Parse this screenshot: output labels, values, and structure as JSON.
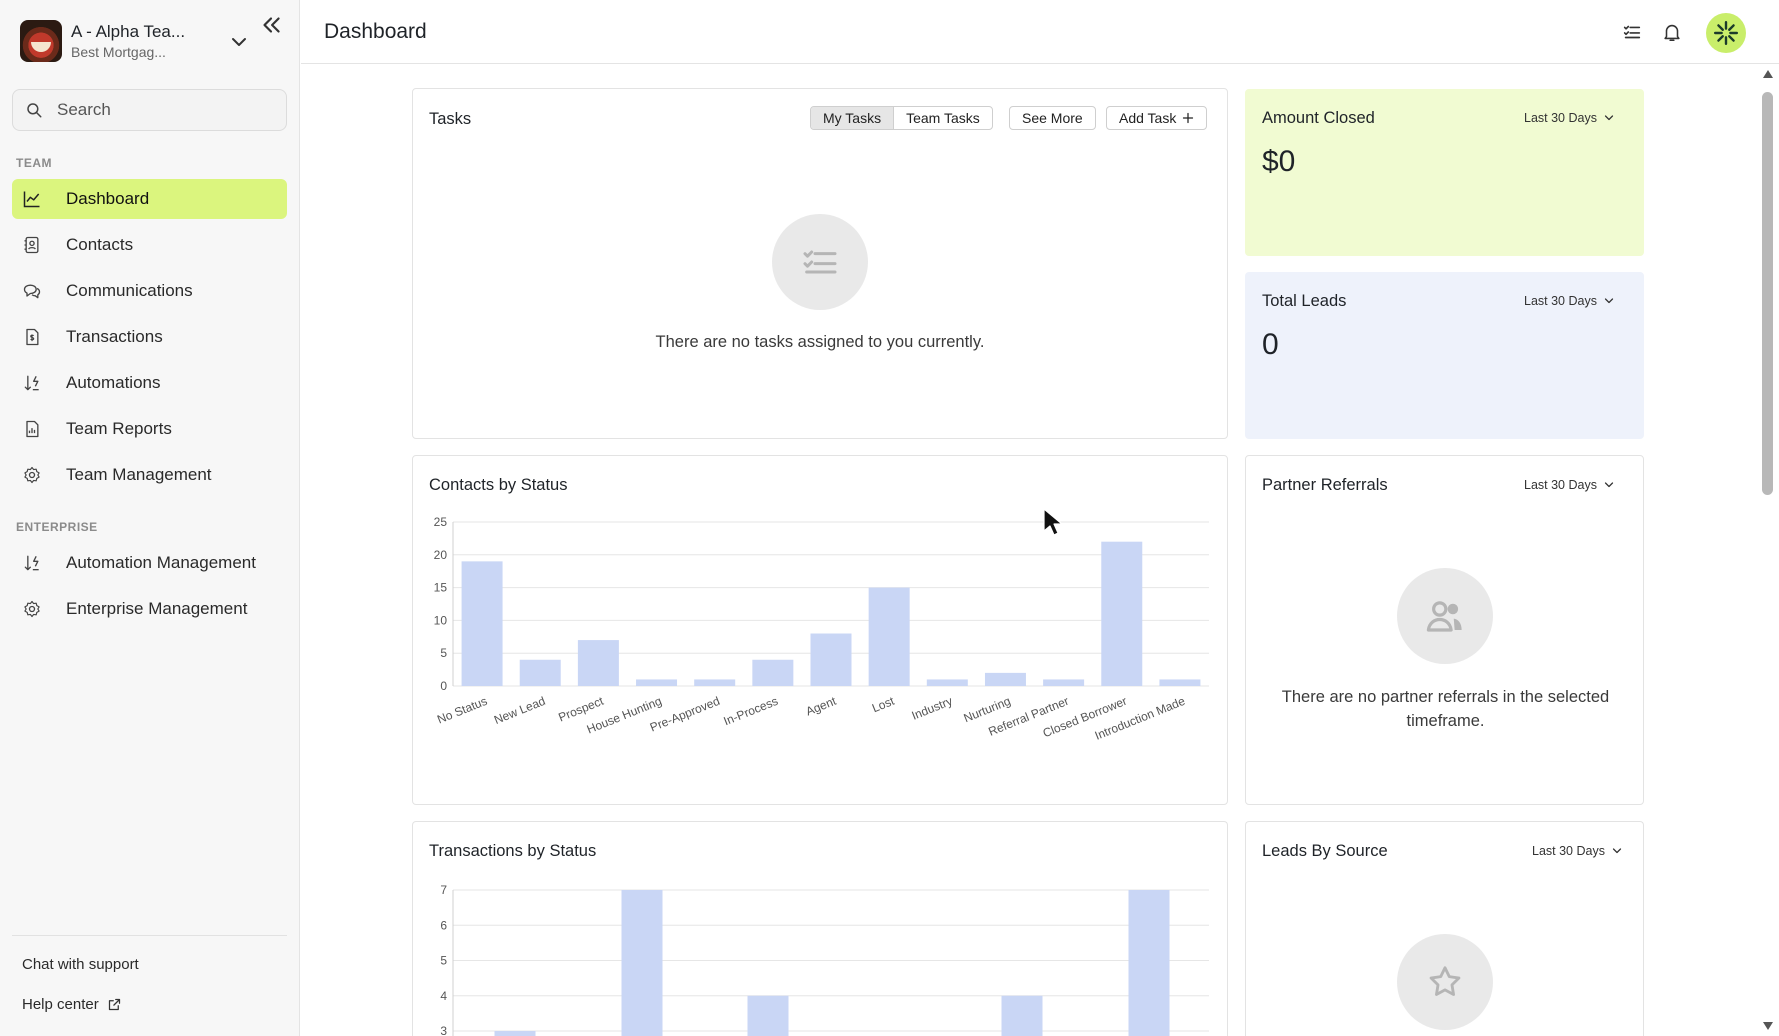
{
  "sidebar": {
    "org_name": "A - Alpha Tea...",
    "org_sub": "Best Mortgag...",
    "search_placeholder": "Search",
    "team_label": "TEAM",
    "team_items": [
      {
        "label": "Dashboard",
        "icon": "chart-line-icon",
        "active": true
      },
      {
        "label": "Contacts",
        "icon": "contact-card-icon"
      },
      {
        "label": "Communications",
        "icon": "chat-bubbles-icon"
      },
      {
        "label": "Transactions",
        "icon": "document-dollar-icon"
      },
      {
        "label": "Automations",
        "icon": "sort-bolt-icon"
      },
      {
        "label": "Team Reports",
        "icon": "report-icon"
      },
      {
        "label": "Team Management",
        "icon": "gear-icon"
      }
    ],
    "enterprise_label": "ENTERPRISE",
    "enterprise_items": [
      {
        "label": "Automation Management",
        "icon": "sort-bolt-icon"
      },
      {
        "label": "Enterprise Management",
        "icon": "gear-icon"
      }
    ],
    "chat_support": "Chat with support",
    "help_center": "Help center"
  },
  "header": {
    "title": "Dashboard"
  },
  "tasks": {
    "title": "Tasks",
    "my_tasks": "My Tasks",
    "team_tasks": "Team Tasks",
    "see_more": "See More",
    "add_task": "Add Task",
    "empty": "There are no tasks assigned to you currently."
  },
  "amount_closed": {
    "title": "Amount Closed",
    "range": "Last 30 Days",
    "value": "$0"
  },
  "total_leads": {
    "title": "Total Leads",
    "range": "Last 30 Days",
    "value": "0"
  },
  "partner_referrals": {
    "title": "Partner Referrals",
    "range": "Last 30 Days",
    "empty_line1": "There are no partner referrals in the selected",
    "empty_line2": "timeframe."
  },
  "leads_by_source": {
    "title": "Leads By Source",
    "range": "Last 30 Days"
  },
  "colors": {
    "accent": "#dbf57e",
    "amount_bg": "#f1fbd2",
    "leads_bg": "#eef2fb",
    "bar": "#c9d6f5"
  },
  "chart_data": [
    {
      "type": "bar",
      "title": "Contacts by Status",
      "categories": [
        "No Status",
        "New Lead",
        "Prospect",
        "House Hunting",
        "Pre-Approved",
        "In-Process",
        "Agent",
        "Lost",
        "Industry",
        "Nurturing",
        "Referral Partner",
        "Closed Borrower",
        "Introduction Made"
      ],
      "values": [
        19,
        4,
        7,
        1,
        1,
        4,
        8,
        15,
        1,
        2,
        1,
        22,
        1
      ],
      "yticks": [
        0,
        5,
        10,
        15,
        20,
        25
      ],
      "ylim": [
        0,
        25
      ],
      "grid": true
    },
    {
      "type": "bar",
      "title": "Transactions by Status",
      "values": [
        3,
        7,
        4,
        4,
        7
      ],
      "yticks_visible": [
        3,
        4,
        5,
        6,
        7
      ],
      "ylim_visible": [
        3,
        7
      ],
      "grid": true
    }
  ]
}
